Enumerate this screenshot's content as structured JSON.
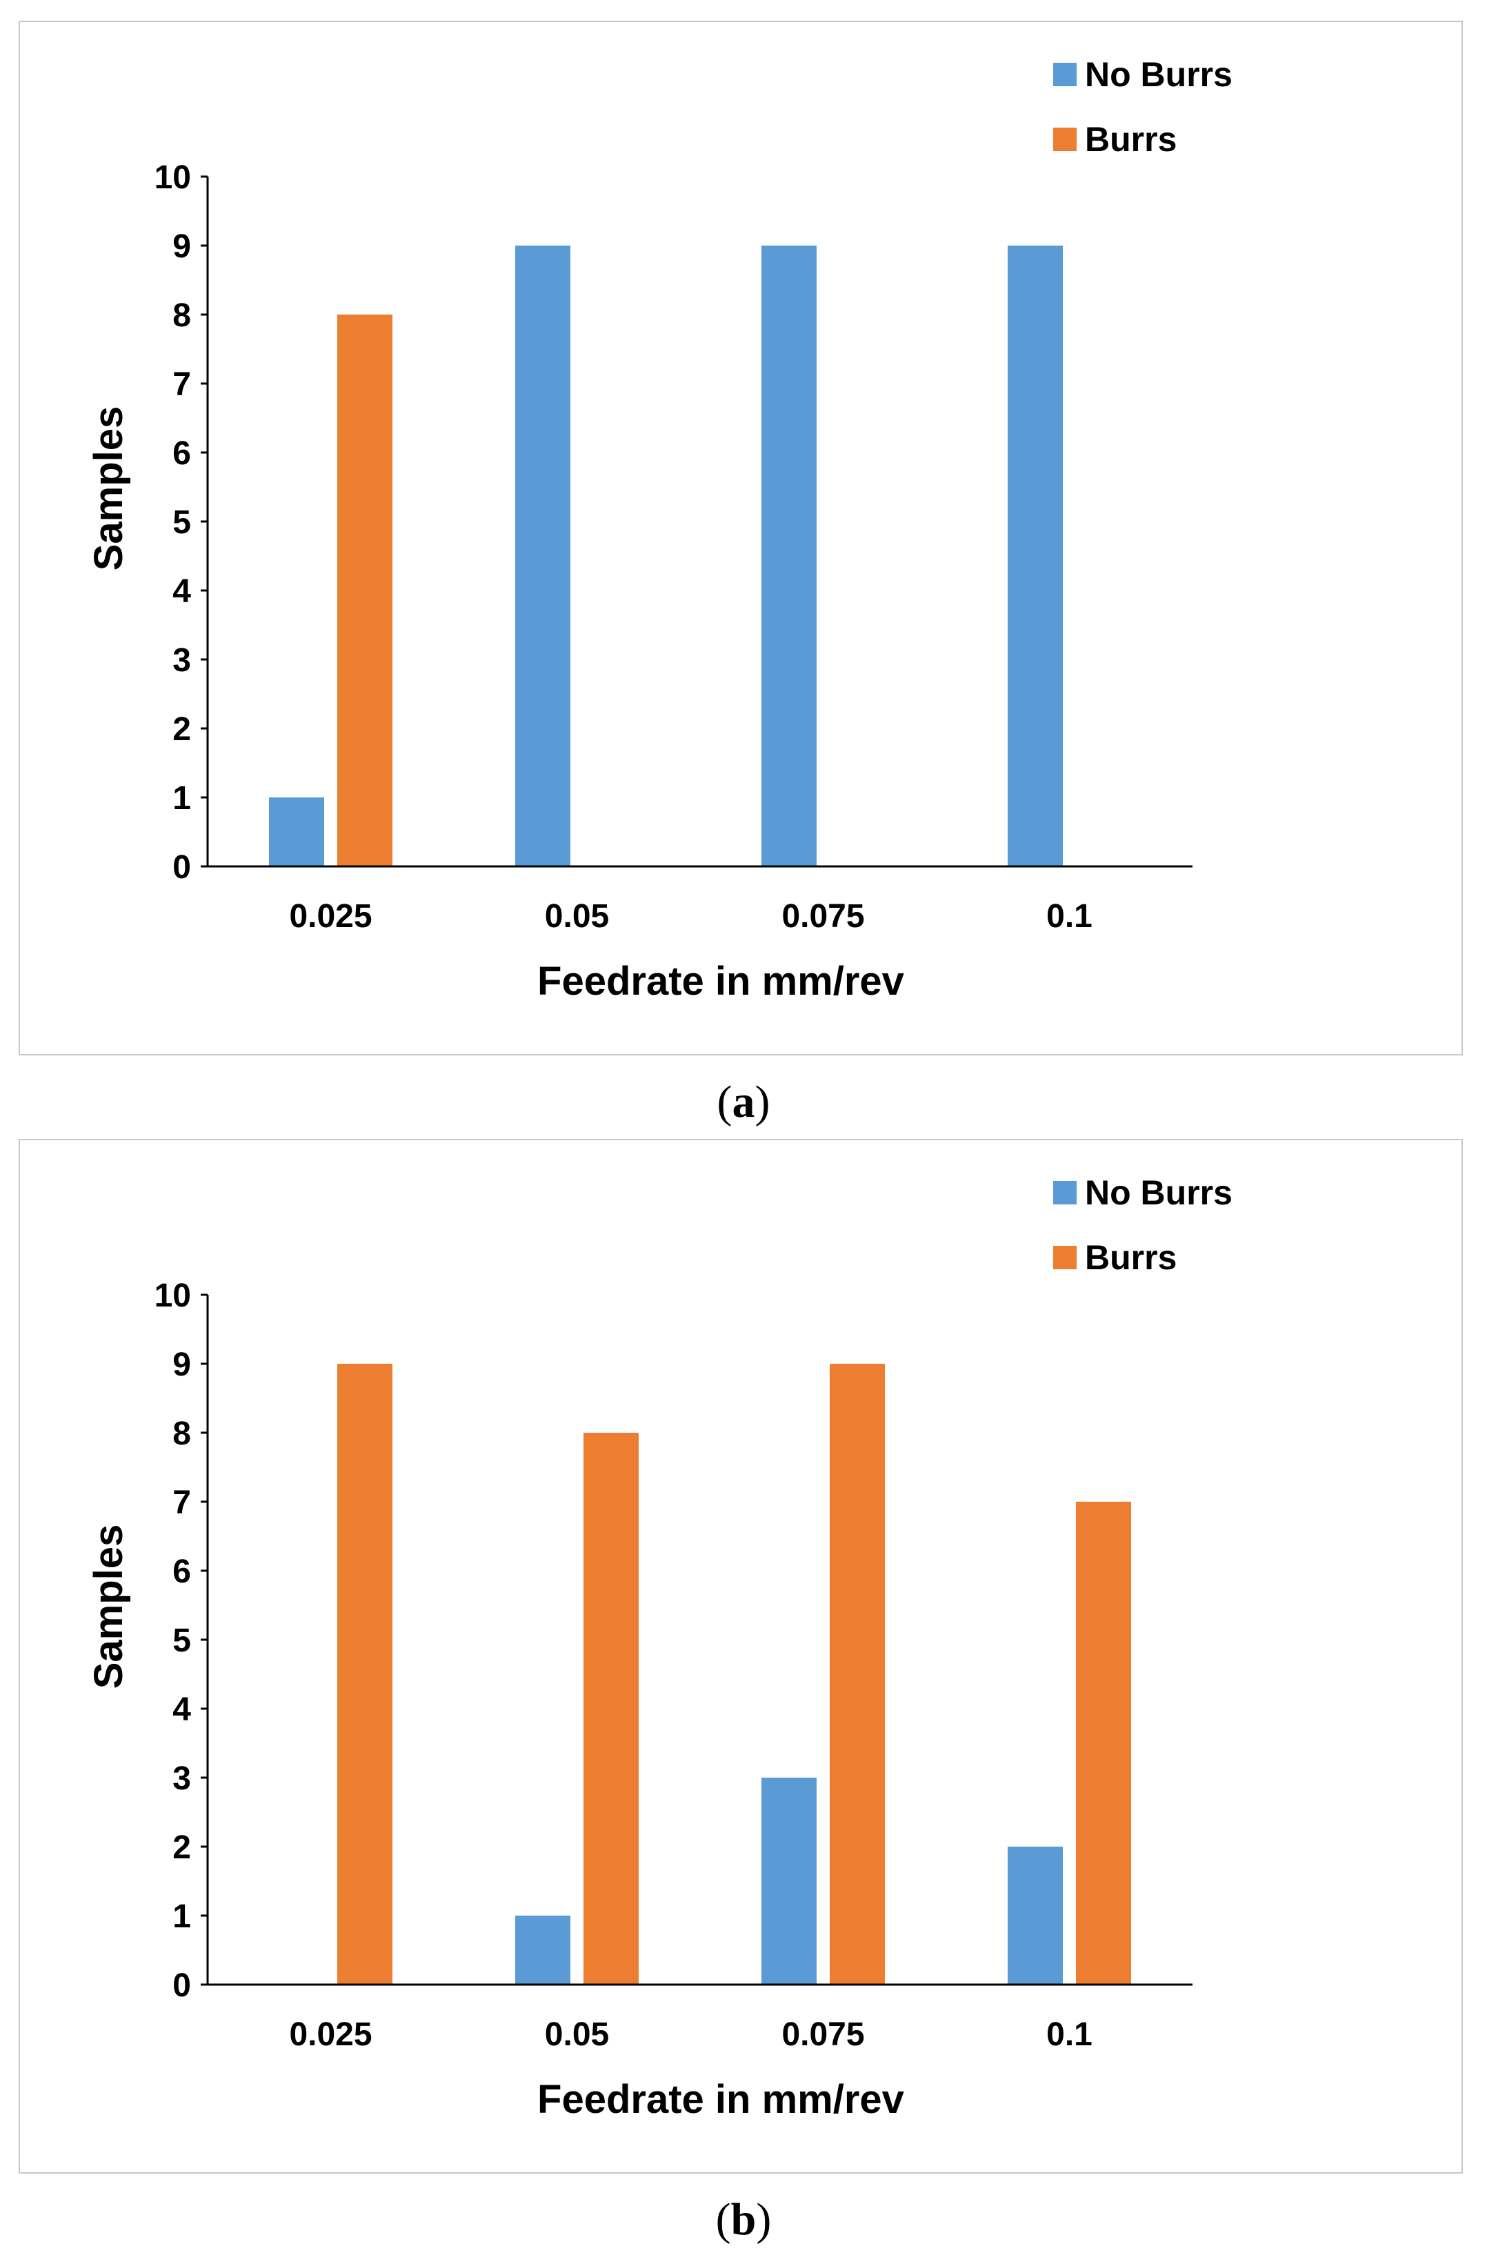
{
  "colors": {
    "no_burrs": "#5b9bd5",
    "burrs": "#ed7d31",
    "axis": "#000000"
  },
  "chart_data": [
    {
      "id": "a",
      "type": "bar",
      "caption": "a",
      "categories": [
        "0.025",
        "0.05",
        "0.075",
        "0.1"
      ],
      "series": [
        {
          "name": "No Burrs",
          "values": [
            1,
            9,
            9,
            9
          ]
        },
        {
          "name": "Burrs",
          "values": [
            8,
            0,
            0,
            0
          ]
        }
      ],
      "xlabel": "Feedrate in mm/rev",
      "ylabel": "Samples",
      "ylim": [
        0,
        10
      ],
      "yticks": [
        0,
        1,
        2,
        3,
        4,
        5,
        6,
        7,
        8,
        9,
        10
      ],
      "grid": false,
      "legend": "top-right"
    },
    {
      "id": "b",
      "type": "bar",
      "caption": "b",
      "categories": [
        "0.025",
        "0.05",
        "0.075",
        "0.1"
      ],
      "series": [
        {
          "name": "No Burrs",
          "values": [
            0,
            1,
            3,
            2
          ]
        },
        {
          "name": "Burrs",
          "values": [
            9,
            8,
            9,
            7
          ]
        }
      ],
      "xlabel": "Feedrate in mm/rev",
      "ylabel": "Samples",
      "ylim": [
        0,
        10
      ],
      "yticks": [
        0,
        1,
        2,
        3,
        4,
        5,
        6,
        7,
        8,
        9,
        10
      ],
      "grid": false,
      "legend": "top-right"
    }
  ]
}
